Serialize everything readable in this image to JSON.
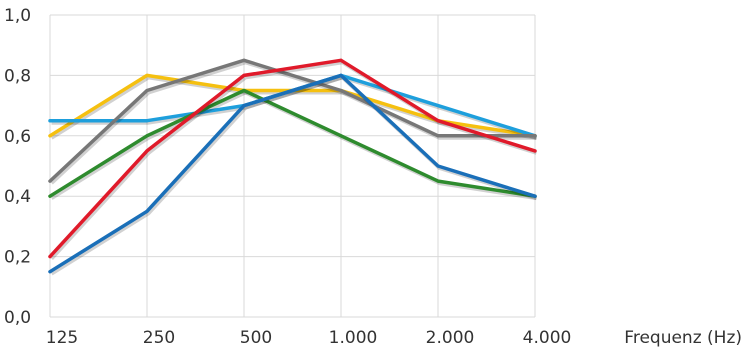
{
  "chart_data": {
    "type": "line",
    "title": "",
    "xlabel": "Frequenz (Hz)",
    "ylabel": "",
    "categories": [
      "125",
      "250",
      "500",
      "1.000",
      "2.000",
      "4.000"
    ],
    "yticks": [
      "0,0",
      "0,2",
      "0,4",
      "0,6",
      "0,8",
      "1,0"
    ],
    "ylim": [
      0,
      1.0
    ],
    "grid": "vertical and horizontal",
    "legend": "none",
    "series": [
      {
        "color": "#f5c010",
        "values": [
          0.6,
          0.8,
          0.75,
          0.75,
          0.65,
          0.6
        ]
      },
      {
        "color": "#1e9fdc",
        "values": [
          0.65,
          0.65,
          0.7,
          0.8,
          0.7,
          0.6
        ]
      },
      {
        "color": "#2e8b2e",
        "values": [
          0.4,
          0.6,
          0.75,
          0.6,
          0.45,
          0.4
        ]
      },
      {
        "color": "#777777",
        "values": [
          0.45,
          0.75,
          0.85,
          0.75,
          0.6,
          0.6
        ]
      },
      {
        "color": "#e01a2a",
        "values": [
          0.2,
          0.55,
          0.8,
          0.85,
          0.65,
          0.55
        ]
      },
      {
        "color": "#1a6fb8",
        "values": [
          0.15,
          0.35,
          0.7,
          0.8,
          0.5,
          0.4
        ]
      }
    ]
  }
}
